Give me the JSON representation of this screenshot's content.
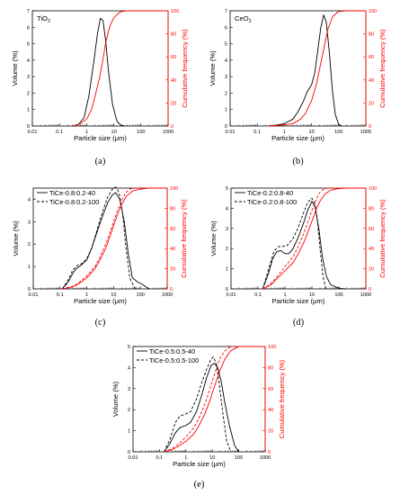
{
  "colors": {
    "volume": "#000000",
    "cumulative": "#ff0000"
  },
  "chart_data": [
    {
      "type": "line",
      "panel": "(a)",
      "caption": "(a)",
      "label_main": "TiO",
      "label_sub": "2",
      "xlabel": "Particle size (μm)",
      "ylabel": "Volume (%)",
      "y2label": "Cumulative frequency (%)",
      "x_scale": "log",
      "xlim": [
        0.01,
        1000
      ],
      "ylim": [
        0,
        7
      ],
      "y2lim": [
        0,
        100
      ],
      "x_ticks": [
        "0.01",
        "0.1",
        "1",
        "10",
        "100",
        "1000"
      ],
      "y_ticks": [
        "0",
        "1",
        "2",
        "3",
        "4",
        "5",
        "6",
        "7"
      ],
      "y2_ticks": [
        "0",
        "20",
        "40",
        "60",
        "80",
        "100"
      ],
      "legend": [],
      "series": [
        {
          "axis": "left",
          "style": "solid",
          "color": "#000000",
          "x": [
            0.3,
            0.5,
            0.8,
            1.2,
            1.8,
            2.5,
            3.2,
            4,
            5,
            6.5,
            9,
            13,
            18,
            25
          ],
          "y": [
            0,
            0.1,
            0.5,
            1.8,
            3.8,
            5.6,
            6.55,
            6.4,
            5.2,
            3.2,
            1.3,
            0.3,
            0.05,
            0
          ]
        },
        {
          "axis": "right",
          "style": "solid",
          "color": "#ff0000",
          "x": [
            0.3,
            0.6,
            1,
            1.5,
            2,
            3,
            4,
            5,
            7,
            10,
            15,
            20,
            30,
            50,
            1000
          ],
          "y": [
            0,
            2,
            6,
            14,
            25,
            42,
            58,
            72,
            86,
            94,
            98,
            99.5,
            100,
            100,
            100
          ]
        }
      ]
    },
    {
      "type": "line",
      "panel": "(b)",
      "caption": "(b)",
      "label_main": "CeO",
      "label_sub": "2",
      "xlabel": "Particle size (μm)",
      "ylabel": "Volume (%)",
      "y2label": "Cumulative frequency (%)",
      "x_scale": "log",
      "xlim": [
        0.01,
        1000
      ],
      "ylim": [
        0,
        7
      ],
      "y2lim": [
        0,
        100
      ],
      "x_ticks": [
        "0.01",
        "0.1",
        "1",
        "10",
        "100",
        "1000"
      ],
      "y_ticks": [
        "0",
        "1",
        "2",
        "3",
        "4",
        "5",
        "6",
        "7"
      ],
      "y2_ticks": [
        "0",
        "20",
        "40",
        "60",
        "80",
        "100"
      ],
      "legend": [],
      "series": [
        {
          "axis": "left",
          "style": "solid",
          "color": "#000000",
          "x": [
            0.25,
            0.5,
            1,
            2,
            3,
            5,
            7,
            10,
            13,
            17,
            22,
            28,
            35,
            45,
            60,
            75,
            100,
            130
          ],
          "y": [
            0,
            0.05,
            0.15,
            0.4,
            0.8,
            1.5,
            2.1,
            2.5,
            3.2,
            4.6,
            6.0,
            6.75,
            6.3,
            4.5,
            2.0,
            0.7,
            0.1,
            0
          ]
        },
        {
          "axis": "right",
          "style": "solid",
          "color": "#ff0000",
          "x": [
            0.25,
            1,
            2,
            4,
            6,
            10,
            15,
            20,
            30,
            40,
            60,
            100,
            200,
            1000
          ],
          "y": [
            0,
            1,
            2,
            6,
            11,
            22,
            36,
            50,
            70,
            84,
            95,
            99.5,
            100,
            100
          ]
        }
      ]
    },
    {
      "type": "line",
      "panel": "(c)",
      "caption": "(c)",
      "xlabel": "Particle size (μm)",
      "ylabel": "Volume (%)",
      "y2label": "Cumulative frequency (%)",
      "x_scale": "log",
      "xlim": [
        0.01,
        1000
      ],
      "ylim": [
        0,
        4.5
      ],
      "y2lim": [
        0,
        100
      ],
      "x_ticks": [
        "0.01",
        "0.1",
        "1",
        "10",
        "100",
        "1000"
      ],
      "y_ticks": [
        "0",
        "1",
        "2",
        "3",
        "4"
      ],
      "y2_ticks": [
        "0",
        "20",
        "40",
        "60",
        "80",
        "100"
      ],
      "legend": [
        "TiCe-0.8:0.2-40",
        "TiCe-0.8:0.2-100"
      ],
      "series": [
        {
          "name": "TiCe-0.8:0.2-40",
          "axis": "left",
          "style": "solid",
          "color": "#000000",
          "x": [
            0.12,
            0.2,
            0.3,
            0.4,
            0.6,
            1,
            1.5,
            2.5,
            4,
            6,
            9,
            12,
            17,
            25,
            35,
            50,
            80,
            120,
            180,
            220
          ],
          "y": [
            0,
            0.3,
            0.7,
            0.9,
            1.05,
            1.3,
            1.8,
            2.6,
            3.3,
            3.85,
            4.2,
            4.3,
            4.0,
            3.0,
            1.6,
            0.5,
            0.3,
            0.2,
            0.05,
            0
          ]
        },
        {
          "name": "TiCe-0.8:0.2-100",
          "axis": "left",
          "style": "dashed",
          "color": "#000000",
          "x": [
            0.12,
            0.2,
            0.3,
            0.45,
            0.7,
            1,
            1.5,
            2.5,
            4,
            6,
            9,
            12,
            16,
            22,
            28,
            40,
            60,
            80
          ],
          "y": [
            0,
            0.4,
            0.85,
            1.05,
            1.15,
            1.35,
            1.8,
            2.7,
            3.5,
            4.1,
            4.45,
            4.55,
            4.3,
            3.3,
            2.0,
            0.5,
            0.05,
            0
          ]
        },
        {
          "name": "",
          "axis": "right",
          "style": "solid",
          "color": "#ff0000",
          "x": [
            0.12,
            0.3,
            0.5,
            1,
            2,
            3,
            5,
            8,
            10,
            15,
            20,
            30,
            50,
            100,
            200,
            1000
          ],
          "y": [
            0,
            2,
            5,
            11,
            20,
            28,
            40,
            55,
            63,
            76,
            84,
            92,
            97,
            99,
            100,
            100
          ]
        },
        {
          "name": "",
          "axis": "right",
          "style": "dashed",
          "color": "#ff0000",
          "x": [
            0.12,
            0.3,
            0.5,
            1,
            2,
            3,
            5,
            8,
            10,
            15,
            20,
            30,
            40,
            60,
            100,
            1000
          ],
          "y": [
            0,
            2.5,
            6,
            13,
            22,
            31,
            44,
            59,
            67,
            80,
            88,
            96,
            99,
            100,
            100,
            100
          ]
        }
      ]
    },
    {
      "type": "line",
      "panel": "(d)",
      "caption": "(d)",
      "xlabel": "Particle size (μm)",
      "ylabel": "Volume (%)",
      "y2label": "Cumulative frequency (%)",
      "x_scale": "log",
      "xlim": [
        0.01,
        1000
      ],
      "ylim": [
        0,
        5
      ],
      "y2lim": [
        0,
        100
      ],
      "x_ticks": [
        "0.01",
        "0.1",
        "1",
        "10",
        "100",
        "1000"
      ],
      "y_ticks": [
        "0",
        "1",
        "2",
        "3",
        "4",
        "5"
      ],
      "y2_ticks": [
        "0",
        "20",
        "40",
        "60",
        "80",
        "100"
      ],
      "legend": [
        "TiCe-0.2:0.8-40",
        "TiCe-0.2:0.8-100"
      ],
      "series": [
        {
          "name": "TiCe-0.2:0.8-40",
          "axis": "left",
          "style": "solid",
          "color": "#000000",
          "x": [
            0.15,
            0.25,
            0.35,
            0.5,
            0.7,
            1,
            1.4,
            2,
            3,
            5,
            7,
            10,
            13,
            18,
            25,
            35,
            50,
            80,
            120,
            180
          ],
          "y": [
            0,
            0.8,
            1.5,
            1.85,
            1.9,
            1.75,
            1.75,
            2.0,
            2.5,
            3.3,
            3.9,
            4.35,
            4.1,
            3.0,
            1.5,
            0.6,
            0.2,
            0.08,
            0.02,
            0
          ]
        },
        {
          "name": "TiCe-0.2:0.8-100",
          "axis": "left",
          "style": "dashed",
          "color": "#000000",
          "x": [
            0.15,
            0.25,
            0.4,
            0.6,
            0.8,
            1.2,
            2,
            3,
            5,
            7,
            10,
            13,
            16,
            20,
            26,
            33
          ],
          "y": [
            0,
            1.0,
            1.9,
            2.1,
            2.1,
            2.15,
            2.5,
            3.0,
            3.8,
            4.3,
            4.5,
            4.2,
            3.4,
            2.0,
            0.6,
            0
          ]
        },
        {
          "name": "",
          "axis": "right",
          "style": "solid",
          "color": "#ff0000",
          "x": [
            0.15,
            0.3,
            0.5,
            1,
            2,
            3,
            5,
            8,
            10,
            15,
            20,
            30,
            50,
            100,
            200,
            1000
          ],
          "y": [
            0,
            4,
            10,
            18,
            26,
            34,
            46,
            60,
            67,
            80,
            87,
            94,
            98,
            99.5,
            100,
            100
          ]
        },
        {
          "name": "",
          "axis": "right",
          "style": "dashed",
          "color": "#ff0000",
          "x": [
            0.15,
            0.3,
            0.5,
            1,
            2,
            3,
            5,
            8,
            10,
            15,
            20,
            30,
            40,
            1000
          ],
          "y": [
            0,
            5,
            12,
            22,
            32,
            41,
            55,
            70,
            78,
            90,
            96,
            99.5,
            100,
            100
          ]
        }
      ]
    },
    {
      "type": "line",
      "panel": "(e)",
      "caption": "(e)",
      "xlabel": "Particle size (μm)",
      "ylabel": "Volume (%)",
      "y2label": "Cumulative frequency (%)",
      "x_scale": "log",
      "xlim": [
        0.01,
        1000
      ],
      "ylim": [
        0,
        5
      ],
      "y2lim": [
        0,
        100
      ],
      "x_ticks": [
        "0.01",
        "0.1",
        "1",
        "10",
        "100",
        "1000"
      ],
      "y_ticks": [
        "0",
        "1",
        "2",
        "3",
        "4",
        "5"
      ],
      "y2_ticks": [
        "0",
        "20",
        "40",
        "60",
        "80",
        "100"
      ],
      "legend": [
        "TiCe-0.5:0.5-40",
        "TiCe-0.5:0.5-100"
      ],
      "series": [
        {
          "name": "TiCe-0.5:0.5-40",
          "axis": "left",
          "style": "solid",
          "color": "#000000",
          "x": [
            0.15,
            0.25,
            0.4,
            0.6,
            1,
            1.5,
            2.5,
            4,
            6,
            9,
            12,
            16,
            22,
            30,
            45,
            70,
            100
          ],
          "y": [
            0,
            0.4,
            0.9,
            1.15,
            1.25,
            1.4,
            1.9,
            2.7,
            3.5,
            4.1,
            4.2,
            4.0,
            3.3,
            2.3,
            1.2,
            0.3,
            0
          ]
        },
        {
          "name": "TiCe-0.5:0.5-100",
          "axis": "left",
          "style": "dashed",
          "color": "#000000",
          "x": [
            0.15,
            0.25,
            0.4,
            0.6,
            1,
            1.5,
            2.5,
            4,
            6,
            9,
            11,
            14,
            18,
            24,
            35,
            50
          ],
          "y": [
            0,
            0.6,
            1.4,
            1.7,
            1.8,
            1.9,
            2.5,
            3.3,
            3.9,
            4.4,
            4.5,
            4.2,
            3.3,
            2.0,
            0.5,
            0
          ]
        },
        {
          "name": "",
          "axis": "right",
          "style": "solid",
          "color": "#ff0000",
          "x": [
            0.15,
            0.3,
            0.5,
            1,
            2,
            3,
            5,
            8,
            10,
            15,
            20,
            30,
            50,
            100,
            1000
          ],
          "y": [
            0,
            2,
            5,
            10,
            17,
            24,
            35,
            48,
            56,
            69,
            78,
            88,
            96,
            100,
            100
          ]
        },
        {
          "name": "",
          "axis": "right",
          "style": "dashed",
          "color": "#ff0000",
          "x": [
            0.15,
            0.3,
            0.5,
            1,
            2,
            3,
            5,
            8,
            10,
            15,
            20,
            30,
            50,
            1000
          ],
          "y": [
            0,
            3,
            7,
            14,
            23,
            31,
            44,
            59,
            67,
            81,
            89,
            96,
            100,
            100
          ]
        }
      ]
    }
  ]
}
